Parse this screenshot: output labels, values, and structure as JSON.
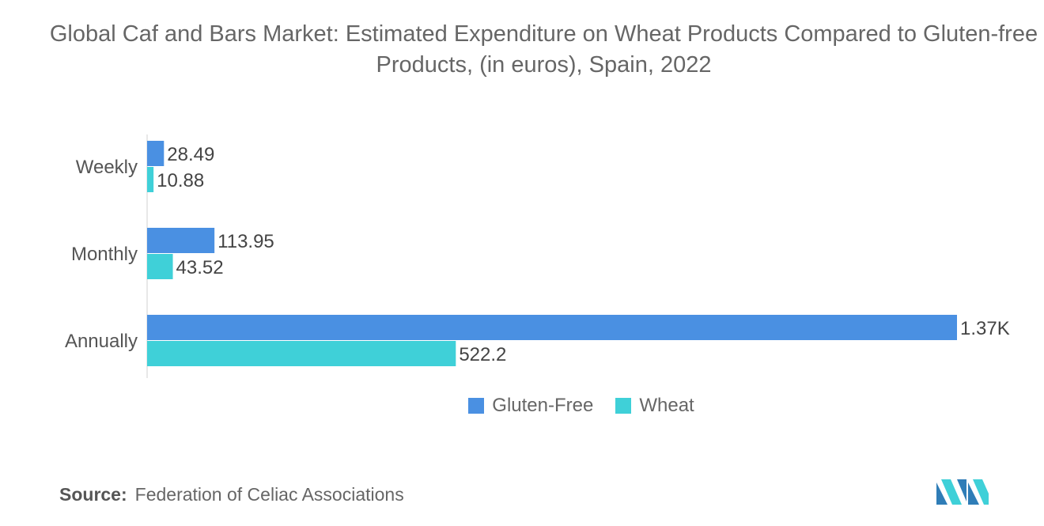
{
  "title": "Global Caf and Bars Market: Estimated Expenditure on Wheat Products Compared to Gluten-free Products, (in euros), Spain, 2022",
  "source": {
    "label": "Source:",
    "text": "Federation of Celiac Associations"
  },
  "colors": {
    "gluten_free": "#4a90e2",
    "wheat": "#3fd0d8"
  },
  "chart_data": {
    "type": "bar",
    "orientation": "horizontal",
    "categories": [
      "Weekly",
      "Monthly",
      "Annually"
    ],
    "series": [
      {
        "name": "Gluten-Free",
        "values": [
          28.49,
          113.95,
          1370
        ],
        "labels": [
          "28.49",
          "113.95",
          "1.37K"
        ]
      },
      {
        "name": "Wheat",
        "values": [
          10.88,
          43.52,
          522.2
        ],
        "labels": [
          "10.88",
          "43.52",
          "522.2"
        ]
      }
    ],
    "legend_position": "bottom",
    "grid": false
  }
}
